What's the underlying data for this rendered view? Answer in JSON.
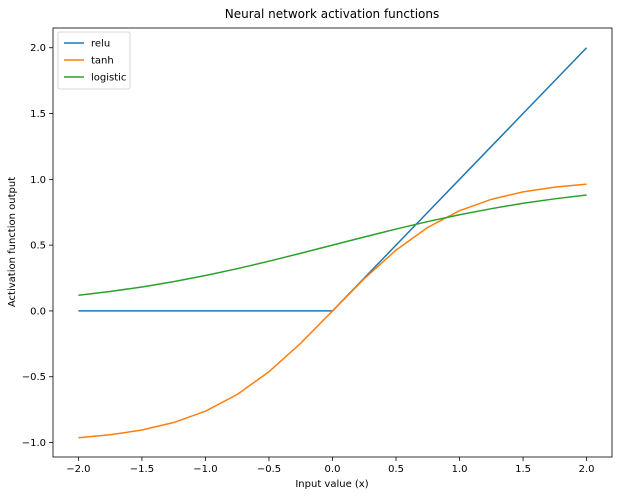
{
  "chart_data": {
    "type": "line",
    "title": "Neural network activation functions",
    "xlabel": "Input value (x)",
    "ylabel": "Activation function output",
    "xlim": [
      -2.2,
      2.2
    ],
    "ylim": [
      -1.11,
      2.15
    ],
    "x_ticks": [
      -2.0,
      -1.5,
      -1.0,
      -0.5,
      0.0,
      0.5,
      1.0,
      1.5,
      2.0
    ],
    "x_tick_labels": [
      "−2.0",
      "−1.5",
      "−1.0",
      "−0.5",
      "0.0",
      "0.5",
      "1.0",
      "1.5",
      "2.0"
    ],
    "y_ticks": [
      -1.0,
      -0.5,
      0.0,
      0.5,
      1.0,
      1.5,
      2.0
    ],
    "y_tick_labels": [
      "−1.0",
      "−0.5",
      "0.0",
      "0.5",
      "1.0",
      "1.5",
      "2.0"
    ],
    "grid": false,
    "legend_position": "upper-left",
    "x": [
      -2.0,
      -1.75,
      -1.5,
      -1.25,
      -1.0,
      -0.75,
      -0.5,
      -0.25,
      0.0,
      0.25,
      0.5,
      0.75,
      1.0,
      1.25,
      1.5,
      1.75,
      2.0
    ],
    "series": [
      {
        "name": "relu",
        "color": "#1f77b4",
        "values": [
          0,
          0,
          0,
          0,
          0,
          0,
          0,
          0,
          0,
          0.25,
          0.5,
          0.75,
          1.0,
          1.25,
          1.5,
          1.75,
          2.0
        ]
      },
      {
        "name": "tanh",
        "color": "#ff7f0e",
        "values": [
          -0.964,
          -0.941,
          -0.905,
          -0.848,
          -0.762,
          -0.635,
          -0.462,
          -0.245,
          0.0,
          0.245,
          0.462,
          0.635,
          0.762,
          0.848,
          0.905,
          0.941,
          0.964
        ]
      },
      {
        "name": "logistic",
        "color": "#2ca02c",
        "values": [
          0.119,
          0.148,
          0.182,
          0.223,
          0.269,
          0.321,
          0.378,
          0.438,
          0.5,
          0.562,
          0.622,
          0.679,
          0.731,
          0.777,
          0.818,
          0.852,
          0.881
        ]
      }
    ]
  }
}
